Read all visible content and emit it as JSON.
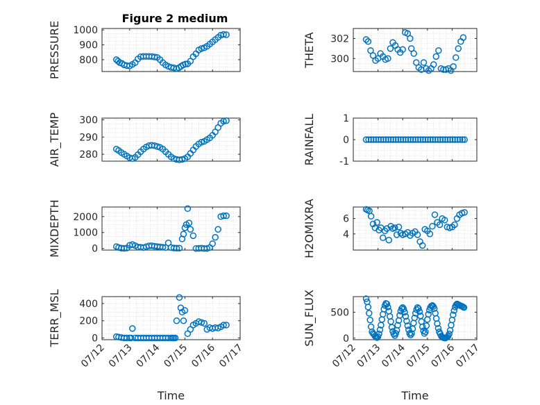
{
  "figure": {
    "title": "Figure 2 medium"
  },
  "style": {
    "marker_color": "#0072BD",
    "axis_color": "#262626",
    "grid_color": "#d9d9d9",
    "background": "#ffffff"
  },
  "chart_data": [
    {
      "id": "pressure",
      "type": "scatter",
      "ylabel": "PRESSURE",
      "title": "Figure 2 medium",
      "ylim": [
        720,
        1010
      ],
      "yticks": [
        800,
        900,
        1000
      ],
      "yticklabels": [
        "800",
        "900",
        "1000"
      ],
      "xlim": [
        0,
        5
      ],
      "xticks": [
        0,
        1,
        2,
        3,
        4,
        5
      ],
      "xticklabels": [],
      "grid": true,
      "x": [
        0.52,
        0.58,
        0.64,
        0.72,
        0.8,
        0.9,
        1.0,
        1.1,
        1.2,
        1.3,
        1.4,
        1.5,
        1.6,
        1.7,
        1.8,
        1.9,
        2.0,
        2.1,
        2.2,
        2.3,
        2.4,
        2.5,
        2.6,
        2.7,
        2.78,
        2.86,
        2.94,
        3.02,
        3.1,
        3.2,
        3.3,
        3.4,
        3.5,
        3.6,
        3.7,
        3.8,
        3.9,
        4.0,
        4.1,
        4.2,
        4.3,
        4.4,
        4.5
      ],
      "y": [
        800,
        790,
        780,
        775,
        765,
        760,
        758,
        768,
        780,
        805,
        820,
        822,
        822,
        822,
        821,
        818,
        815,
        800,
        780,
        765,
        755,
        748,
        745,
        740,
        745,
        755,
        765,
        770,
        772,
        790,
        820,
        840,
        865,
        875,
        880,
        890,
        905,
        920,
        935,
        950,
        965,
        970,
        968
      ]
    },
    {
      "id": "theta",
      "type": "scatter",
      "ylabel": "THETA",
      "ylim": [
        298.7,
        303.0
      ],
      "yticks": [
        300,
        302
      ],
      "yticklabels": [
        "300",
        "302"
      ],
      "xlim": [
        0,
        5
      ],
      "xticks": [
        0,
        1,
        2,
        3,
        4,
        5
      ],
      "xticklabels": [],
      "grid": true,
      "x": [
        0.52,
        0.6,
        0.7,
        0.8,
        0.9,
        1.0,
        1.1,
        1.2,
        1.3,
        1.4,
        1.5,
        1.6,
        1.7,
        1.8,
        1.9,
        2.0,
        2.1,
        2.2,
        2.3,
        2.35,
        2.45,
        2.55,
        2.65,
        2.75,
        2.85,
        2.95,
        3.05,
        3.15,
        3.25,
        3.35,
        3.45,
        3.55,
        3.65,
        3.75,
        3.85,
        3.95,
        4.05,
        4.15,
        4.25,
        4.35,
        4.45
      ],
      "y": [
        301.9,
        301.7,
        300.8,
        300.3,
        299.8,
        300.0,
        300.5,
        300.2,
        299.9,
        300.0,
        301.0,
        301.6,
        301.3,
        300.9,
        300.6,
        300.9,
        302.6,
        302.5,
        302.0,
        301.0,
        300.5,
        299.6,
        299.1,
        298.9,
        299.6,
        299.0,
        298.8,
        299.0,
        299.4,
        300.2,
        300.8,
        299.0,
        298.9,
        298.9,
        299.0,
        298.8,
        299.2,
        300.1,
        301.0,
        301.7,
        302.1
      ]
    },
    {
      "id": "air_temp",
      "type": "scatter",
      "ylabel": "AIR_TEMP",
      "ylim": [
        276,
        301
      ],
      "yticks": [
        280,
        290,
        300
      ],
      "yticklabels": [
        "280",
        "290",
        "300"
      ],
      "xlim": [
        0,
        5
      ],
      "xticks": [
        0,
        1,
        2,
        3,
        4,
        5
      ],
      "xticklabels": [],
      "grid": true,
      "x": [
        0.52,
        0.6,
        0.7,
        0.8,
        0.9,
        1.0,
        1.1,
        1.2,
        1.3,
        1.4,
        1.5,
        1.6,
        1.7,
        1.8,
        1.9,
        2.0,
        2.1,
        2.2,
        2.3,
        2.4,
        2.5,
        2.6,
        2.7,
        2.8,
        2.9,
        3.0,
        3.1,
        3.2,
        3.3,
        3.4,
        3.5,
        3.6,
        3.7,
        3.8,
        3.9,
        4.0,
        4.1,
        4.2,
        4.3,
        4.4,
        4.5
      ],
      "y": [
        283.0,
        282.2,
        281.0,
        280.0,
        279.0,
        278.0,
        277.5,
        278.2,
        279.8,
        281.5,
        283.0,
        284.2,
        285.0,
        285.2,
        285.0,
        284.5,
        284.0,
        283.0,
        281.5,
        280.0,
        278.5,
        277.5,
        277.0,
        276.8,
        277.0,
        277.5,
        278.5,
        280.5,
        282.5,
        284.5,
        286.0,
        287.0,
        287.5,
        288.5,
        289.5,
        291.0,
        293.0,
        295.5,
        298.0,
        299.2,
        299.5
      ]
    },
    {
      "id": "rainfall",
      "type": "scatter",
      "ylabel": "RAINFALL",
      "ylim": [
        -1,
        1
      ],
      "yticks": [
        -1,
        0,
        1
      ],
      "yticklabels": [
        "-1",
        "0",
        "1"
      ],
      "xlim": [
        0,
        5
      ],
      "xticks": [
        0,
        1,
        2,
        3,
        4,
        5
      ],
      "xticklabels": [],
      "grid": true,
      "x": [
        0.52,
        0.62,
        0.72,
        0.82,
        0.92,
        1.02,
        1.12,
        1.22,
        1.32,
        1.42,
        1.52,
        1.62,
        1.72,
        1.82,
        1.92,
        2.02,
        2.12,
        2.22,
        2.32,
        2.42,
        2.52,
        2.62,
        2.72,
        2.82,
        2.92,
        3.02,
        3.12,
        3.22,
        3.32,
        3.42,
        3.52,
        3.62,
        3.72,
        3.82,
        3.92,
        4.02,
        4.12,
        4.22,
        4.32,
        4.42,
        4.5
      ],
      "y": [
        0,
        0,
        0,
        0,
        0,
        0,
        0,
        0,
        0,
        0,
        0,
        0,
        0,
        0,
        0,
        0,
        0,
        0,
        0,
        0,
        0,
        0,
        0,
        0,
        0,
        0,
        0,
        0,
        0,
        0,
        0,
        0,
        0,
        0,
        0,
        0,
        0,
        0,
        0,
        0,
        0
      ]
    },
    {
      "id": "mixdepth",
      "type": "scatter",
      "ylabel": "MIXDEPTH",
      "ylim": [
        -100,
        2600
      ],
      "yticks": [
        0,
        1000,
        2000
      ],
      "yticklabels": [
        "0",
        "1000",
        "2000"
      ],
      "xlim": [
        0,
        5
      ],
      "xticks": [
        0,
        1,
        2,
        3,
        4,
        5
      ],
      "xticklabels": [],
      "grid": true,
      "x": [
        0.52,
        0.6,
        0.7,
        0.8,
        0.9,
        1.0,
        1.1,
        1.2,
        1.3,
        1.4,
        1.5,
        1.6,
        1.7,
        1.8,
        1.9,
        2.0,
        2.1,
        2.2,
        2.3,
        2.4,
        2.5,
        2.6,
        2.7,
        2.8,
        2.9,
        2.95,
        3.0,
        3.05,
        3.1,
        3.15,
        3.2,
        3.3,
        3.4,
        3.5,
        3.6,
        3.7,
        3.8,
        3.9,
        4.0,
        4.1,
        4.2,
        4.3,
        4.4,
        4.5
      ],
      "y": [
        120,
        60,
        20,
        10,
        30,
        200,
        250,
        180,
        90,
        80,
        60,
        110,
        160,
        170,
        140,
        120,
        100,
        80,
        60,
        350,
        60,
        30,
        20,
        20,
        600,
        900,
        1300,
        1500,
        2500,
        1600,
        1200,
        800,
        0,
        10,
        20,
        0,
        0,
        60,
        300,
        700,
        1200,
        2000,
        2050,
        2050
      ]
    },
    {
      "id": "h2omixra",
      "type": "scatter",
      "ylabel": "H2OMIXRA",
      "ylim": [
        1.9,
        7.5
      ],
      "yticks": [
        4,
        6
      ],
      "yticklabels": [
        "4",
        "6"
      ],
      "xlim": [
        0,
        5
      ],
      "xticks": [
        0,
        1,
        2,
        3,
        4,
        5
      ],
      "xticklabels": [],
      "grid": true,
      "x": [
        0.52,
        0.58,
        0.65,
        0.72,
        0.8,
        0.88,
        0.96,
        1.04,
        1.12,
        1.2,
        1.28,
        1.36,
        1.44,
        1.52,
        1.6,
        1.68,
        1.76,
        1.84,
        1.92,
        2.0,
        2.1,
        2.2,
        2.3,
        2.4,
        2.5,
        2.6,
        2.7,
        2.8,
        2.9,
        3.0,
        3.1,
        3.2,
        3.3,
        3.4,
        3.5,
        3.6,
        3.7,
        3.8,
        3.9,
        4.0,
        4.1,
        4.2,
        4.3,
        4.4,
        4.5
      ],
      "y": [
        7.2,
        7.1,
        7.0,
        6.3,
        5.3,
        4.8,
        5.5,
        4.5,
        4.8,
        3.5,
        4.4,
        4.7,
        3.2,
        5.0,
        4.7,
        4.8,
        3.9,
        4.9,
        4.1,
        3.9,
        4.0,
        4.2,
        3.8,
        4.1,
        4.3,
        3.9,
        3.0,
        2.5,
        4.6,
        4.4,
        4.0,
        5.0,
        6.5,
        5.5,
        5.2,
        6.0,
        5.8,
        4.9,
        4.8,
        4.9,
        5.2,
        6.0,
        6.5,
        6.7,
        6.8
      ]
    },
    {
      "id": "terr_msl",
      "type": "scatter",
      "ylabel": "TERR_MSL",
      "ylim": [
        -20,
        480
      ],
      "yticks": [
        0,
        200,
        400
      ],
      "yticklabels": [
        "0",
        "200",
        "400"
      ],
      "xlim": [
        0,
        5
      ],
      "xticks": [
        0,
        1,
        2,
        3,
        4,
        5
      ],
      "xticklabels": [
        "07/12",
        "07/13",
        "07/14",
        "07/15",
        "07/16",
        "07/17"
      ],
      "xlabel": "Time",
      "grid": true,
      "x": [
        0.52,
        0.6,
        0.7,
        0.8,
        0.9,
        1.0,
        1.05,
        1.1,
        1.2,
        1.3,
        1.4,
        1.5,
        1.6,
        1.7,
        1.8,
        1.9,
        2.0,
        2.1,
        2.2,
        2.3,
        2.4,
        2.5,
        2.55,
        2.6,
        2.65,
        2.7,
        2.8,
        2.85,
        2.9,
        2.95,
        3.0,
        3.1,
        3.2,
        3.3,
        3.4,
        3.5,
        3.6,
        3.7,
        3.8,
        3.9,
        4.0,
        4.1,
        4.2,
        4.3,
        4.4,
        4.5
      ],
      "y": [
        15,
        10,
        5,
        0,
        0,
        0,
        0,
        110,
        0,
        0,
        0,
        0,
        0,
        0,
        0,
        0,
        0,
        0,
        0,
        0,
        0,
        0,
        0,
        0,
        0,
        200,
        470,
        350,
        300,
        200,
        320,
        50,
        100,
        150,
        170,
        190,
        180,
        170,
        100,
        120,
        110,
        120,
        115,
        130,
        150,
        150
      ]
    },
    {
      "id": "sun_flux",
      "type": "scatter",
      "ylabel": "SUN_FLUX",
      "ylim": [
        -30,
        800
      ],
      "yticks": [
        0,
        500
      ],
      "yticklabels": [
        "0",
        "500"
      ],
      "xlim": [
        0,
        5
      ],
      "xticks": [
        0,
        1,
        2,
        3,
        4,
        5
      ],
      "xticklabels": [
        "07/12",
        "07/13",
        "07/14",
        "07/15",
        "07/16",
        "07/17"
      ],
      "xlabel": "Time",
      "grid": true,
      "x": [
        0.52,
        0.56,
        0.6,
        0.64,
        0.68,
        0.72,
        0.76,
        0.8,
        0.84,
        0.88,
        0.92,
        0.96,
        1.0,
        1.04,
        1.08,
        1.12,
        1.16,
        1.2,
        1.24,
        1.28,
        1.32,
        1.36,
        1.4,
        1.44,
        1.48,
        1.52,
        1.56,
        1.6,
        1.64,
        1.68,
        1.72,
        1.76,
        1.8,
        1.84,
        1.88,
        1.92,
        1.96,
        2.0,
        2.04,
        2.08,
        2.12,
        2.16,
        2.2,
        2.24,
        2.28,
        2.32,
        2.36,
        2.4,
        2.44,
        2.48,
        2.52,
        2.56,
        2.6,
        2.64,
        2.68,
        2.72,
        2.76,
        2.8,
        2.84,
        2.88,
        2.92,
        2.96,
        3.0,
        3.04,
        3.08,
        3.12,
        3.16,
        3.2,
        3.24,
        3.28,
        3.32,
        3.36,
        3.4,
        3.44,
        3.48,
        3.52,
        3.56,
        3.6,
        3.64,
        3.68,
        3.72,
        3.76,
        3.8,
        3.84,
        3.88,
        3.92,
        3.96,
        4.0,
        4.04,
        4.08,
        4.12,
        4.16,
        4.2,
        4.24,
        4.28,
        4.32,
        4.36,
        4.4,
        4.44,
        4.48
      ],
      "y": [
        760,
        700,
        600,
        480,
        350,
        220,
        120,
        90,
        70,
        40,
        20,
        10,
        30,
        80,
        160,
        250,
        360,
        460,
        560,
        630,
        670,
        660,
        600,
        520,
        420,
        320,
        210,
        130,
        80,
        50,
        90,
        150,
        250,
        340,
        440,
        520,
        570,
        590,
        560,
        500,
        420,
        330,
        240,
        160,
        90,
        60,
        90,
        180,
        290,
        390,
        480,
        550,
        590,
        570,
        510,
        430,
        320,
        220,
        140,
        90,
        120,
        240,
        360,
        460,
        540,
        590,
        620,
        630,
        610,
        570,
        480,
        380,
        280,
        190,
        120,
        80,
        40,
        20,
        10,
        5,
        0,
        10,
        20,
        40,
        80,
        150,
        250,
        350,
        450,
        530,
        600,
        640,
        660,
        650,
        640,
        630,
        620,
        615,
        600,
        590
      ]
    }
  ]
}
